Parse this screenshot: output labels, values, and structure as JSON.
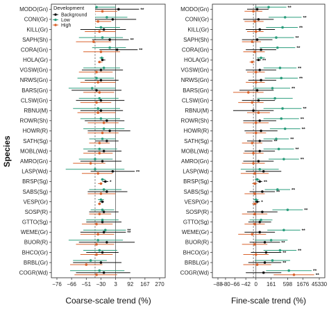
{
  "figure": {
    "ylabel": "Species",
    "legend": {
      "title": "Development",
      "placement": "top-left of left panel",
      "entries": [
        {
          "key": "Background",
          "label": "Background",
          "color": "#111111"
        },
        {
          "key": "Low",
          "label": "Low",
          "color": "#2a9d7c"
        },
        {
          "key": "High",
          "label": "High",
          "color": "#d9622b"
        }
      ]
    },
    "colors": {
      "Background": "#111111",
      "Low": "#2a9d7c",
      "High": "#d9622b"
    }
  },
  "chart_data": [
    {
      "type": "scatter",
      "xlabel": "Coarse-scale trend (%)",
      "x_ticks": [
        "−76",
        "−66",
        "−51",
        "−30",
        "3",
        "92",
        "167",
        "270"
      ],
      "reference_lines": {
        "zero_tick": "3",
        "dashed_tick_position": 2.6
      },
      "species": [
        "MODO(Gn)",
        "CONI(Gr)",
        "KILL(Gr)",
        "SAPH(Sh)",
        "CORA(Gn)",
        "HOLA(Gr)",
        "VGSW(Gn)",
        "NRWS(Gn)",
        "BARS(Gn)",
        "CLSW(Gn)",
        "RBNU(M)",
        "ROWR(Sh)",
        "HOWR(R)",
        "SATH(Sg)",
        "MOBL(Wd)",
        "AMRO(Gn)",
        "LASP(Wd)",
        "BRSP(Sg)",
        "SABS(Sg)",
        "VESP(Gr)",
        "SOSP(R)",
        "GTTO(Sg)",
        "WEME(Gr)",
        "BUOR(R)",
        "BHCO(Gr)",
        "BRBL(Gr)",
        "COGR(Wd)"
      ],
      "value_units": "position on the printed tick scale (0 = −76 … 7 = 270)",
      "estimates": [
        {
          "B": [
            4.2,
            2.6,
            5.6,
            "**"
          ],
          "L": [
            2.7,
            1.5,
            4.0,
            ""
          ],
          "H": [
            3.1,
            2.0,
            4.1,
            ""
          ]
        },
        {
          "B": [
            3.8,
            2.6,
            5.4,
            ""
          ],
          "L": [
            3.4,
            2.4,
            4.8,
            ""
          ],
          "H": [
            2.8,
            1.6,
            3.7,
            ""
          ]
        },
        {
          "B": [
            3.2,
            1.6,
            4.7,
            ""
          ],
          "L": [
            3.0,
            1.8,
            4.3,
            ""
          ],
          "H": [
            2.9,
            1.9,
            4.0,
            ""
          ]
        },
        {
          "B": [
            3.6,
            2.4,
            4.9,
            "**"
          ],
          "L": [
            3.1,
            1.5,
            4.5,
            ""
          ],
          "H": [
            2.5,
            1.3,
            3.7,
            ""
          ]
        },
        {
          "B": [
            4.1,
            2.9,
            5.5,
            "**"
          ],
          "L": [
            3.6,
            2.4,
            4.7,
            ""
          ],
          "H": [
            3.0,
            1.8,
            4.3,
            ""
          ]
        },
        {
          "B": [
            3.1,
            3.0,
            3.3,
            ""
          ],
          "L": [
            3.05,
            2.9,
            3.2,
            ""
          ],
          "H": [
            2.9,
            2.8,
            3.1,
            ""
          ]
        },
        {
          "B": [
            3.0,
            1.7,
            4.5,
            ""
          ],
          "L": [
            3.2,
            1.8,
            4.3,
            ""
          ],
          "H": [
            2.7,
            1.5,
            3.8,
            ""
          ]
        },
        {
          "B": [
            3.0,
            1.9,
            4.2,
            ""
          ],
          "L": [
            2.7,
            1.4,
            3.9,
            ""
          ],
          "H": [
            2.8,
            1.6,
            4.0,
            ""
          ]
        },
        {
          "B": [
            2.7,
            1.0,
            4.4,
            ""
          ],
          "L": [
            2.4,
            0.8,
            4.0,
            ""
          ],
          "H": [
            2.9,
            1.8,
            3.9,
            ""
          ]
        },
        {
          "B": [
            3.0,
            1.3,
            4.6,
            ""
          ],
          "L": [
            2.9,
            1.5,
            4.2,
            ""
          ],
          "H": [
            2.7,
            1.6,
            3.7,
            ""
          ]
        },
        {
          "B": [
            3.0,
            1.6,
            4.5,
            ""
          ],
          "L": [
            2.8,
            1.1,
            4.3,
            ""
          ],
          "H": [
            2.8,
            1.4,
            4.0,
            ""
          ]
        },
        {
          "B": [
            3.4,
            1.9,
            4.6,
            ""
          ],
          "L": [
            3.0,
            1.6,
            4.3,
            ""
          ],
          "H": [
            3.2,
            2.1,
            4.2,
            ""
          ]
        },
        {
          "B": [
            3.6,
            2.1,
            5.0,
            ""
          ],
          "L": [
            3.2,
            1.8,
            4.6,
            ""
          ],
          "H": [
            3.1,
            2.1,
            4.2,
            ""
          ]
        },
        {
          "B": [
            3.4,
            2.6,
            4.2,
            ""
          ],
          "L": [
            3.1,
            2.2,
            4.0,
            ""
          ],
          "H": [
            2.9,
            2.2,
            3.6,
            ""
          ]
        },
        {
          "B": [
            3.2,
            2.1,
            4.4,
            ""
          ],
          "L": [
            2.9,
            1.8,
            4.1,
            ""
          ],
          "H": [
            2.9,
            1.8,
            3.8,
            ""
          ]
        },
        {
          "B": [
            3.1,
            1.6,
            4.4,
            ""
          ],
          "L": [
            2.6,
            1.5,
            3.8,
            ""
          ],
          "H": [
            2.3,
            1.1,
            3.3,
            ""
          ]
        },
        {
          "B": [
            3.8,
            2.3,
            5.3,
            "**"
          ],
          "L": [
            2.6,
            0.6,
            4.6,
            ""
          ],
          "H": [
            2.8,
            1.7,
            3.8,
            ""
          ]
        },
        {
          "B": [
            3.3,
            3.1,
            3.5,
            "*"
          ],
          "L": [
            3.1,
            3.0,
            3.3,
            ""
          ],
          "H": [
            3.0,
            2.8,
            3.1,
            ""
          ]
        },
        {
          "B": [
            3.4,
            2.1,
            4.8,
            ""
          ],
          "L": [
            3.2,
            2.2,
            4.4,
            ""
          ],
          "H": [
            3.0,
            2.1,
            4.0,
            ""
          ]
        },
        {
          "B": [
            3.1,
            2.9,
            3.2,
            ""
          ],
          "L": [
            3.0,
            2.8,
            3.2,
            ""
          ],
          "H": [
            2.9,
            2.8,
            3.0,
            ""
          ]
        },
        {
          "B": [
            3.2,
            2.2,
            4.2,
            ""
          ],
          "L": [
            3.1,
            2.3,
            3.9,
            ""
          ],
          "H": [
            2.9,
            2.2,
            3.7,
            ""
          ]
        },
        {
          "B": [
            3.1,
            2.0,
            4.4,
            ""
          ],
          "L": [
            3.1,
            2.0,
            4.2,
            ""
          ],
          "H": [
            2.7,
            1.7,
            3.8,
            ""
          ]
        },
        {
          "B": [
            3.2,
            1.6,
            4.7,
            "**"
          ],
          "L": [
            3.3,
            1.8,
            4.7,
            "**"
          ],
          "H": [
            2.8,
            1.6,
            3.9,
            ""
          ]
        },
        {
          "B": [
            3.4,
            1.5,
            5.3,
            ""
          ],
          "L": [
            2.8,
            0.8,
            4.5,
            ""
          ],
          "H": [
            2.7,
            1.3,
            3.9,
            ""
          ]
        },
        {
          "B": [
            3.1,
            2.0,
            4.2,
            ""
          ],
          "L": [
            2.9,
            1.8,
            4.1,
            ""
          ],
          "H": [
            2.7,
            1.6,
            3.8,
            ""
          ]
        },
        {
          "B": [
            3.0,
            1.1,
            4.4,
            ""
          ],
          "L": [
            2.3,
            1.1,
            3.4,
            ""
          ],
          "H": [
            2.0,
            0.9,
            3.1,
            ""
          ]
        },
        {
          "B": [
            3.2,
            1.3,
            5.0,
            ""
          ],
          "L": [
            2.9,
            0.9,
            4.6,
            ""
          ],
          "H": [
            2.7,
            1.2,
            4.1,
            ""
          ]
        }
      ]
    },
    {
      "type": "scatter",
      "xlabel": "Fine-scale trend (%)",
      "x_ticks": [
        "−88",
        "−80",
        "−66",
        "−42",
        "0",
        "161",
        "598",
        "1676",
        "45330"
      ],
      "x_tick_positions": [
        0,
        0.6,
        1.35,
        2.2,
        3.0,
        4.2,
        5.5,
        6.7,
        8.0
      ],
      "reference_lines": {
        "zero_tick": "0",
        "dashed_tick_position": 2.8
      },
      "species": [
        "MODO(Gn)",
        "CONI(Gr)",
        "KILL(Gr)",
        "SAPH(Sh)",
        "CORA(Gn)",
        "HOLA(Gr)",
        "VGSW(Gn)",
        "NRWS(Gn)",
        "BARS(Gn)",
        "CLSW(Gn)",
        "RBNU(M)",
        "ROWR(Sh)",
        "HOWR(R)",
        "SATH(Sg)",
        "MOBL(Wd)",
        "AMRO(Gn)",
        "LASP(Wd)",
        "BRSP(Sg)",
        "SABS(Sg)",
        "VESP(Gr)",
        "SOSP(R)",
        "GTTO(Sg)",
        "WEME(Gr)",
        "BUOR(R)",
        "BHCO(Gr)",
        "BRBL(Gr)",
        "COGR(Wd)"
      ],
      "value_units": "position on the printed tick scale (0 = −88 … 8 = 45330)",
      "estimates": [
        {
          "B": [
            3.1,
            2.3,
            4.0,
            ""
          ],
          "L": [
            4.0,
            2.9,
            5.4,
            "**"
          ],
          "H": [
            2.8,
            2.1,
            3.5,
            ""
          ]
        },
        {
          "B": [
            3.2,
            2.0,
            4.4,
            ""
          ],
          "L": [
            5.3,
            4.0,
            6.6,
            "**"
          ],
          "H": [
            2.9,
            2.1,
            3.6,
            ""
          ]
        },
        {
          "B": [
            3.3,
            2.2,
            4.5,
            ""
          ],
          "L": [
            5.1,
            3.8,
            6.3,
            "**"
          ],
          "H": [
            3.0,
            2.3,
            3.6,
            ""
          ]
        },
        {
          "B": [
            3.1,
            1.9,
            4.3,
            ""
          ],
          "L": [
            4.6,
            3.2,
            6.0,
            "**"
          ],
          "H": [
            2.7,
            1.9,
            3.4,
            ""
          ]
        },
        {
          "B": [
            3.4,
            2.2,
            4.6,
            ""
          ],
          "L": [
            4.7,
            3.3,
            6.1,
            "**"
          ],
          "H": [
            2.9,
            2.0,
            3.7,
            ""
          ]
        },
        {
          "B": [
            3.2,
            3.0,
            3.4,
            "**"
          ],
          "L": [
            3.4,
            3.1,
            3.7,
            ""
          ],
          "H": [
            2.7,
            2.5,
            2.9,
            ""
          ]
        },
        {
          "B": [
            3.3,
            2.2,
            4.6,
            ""
          ],
          "L": [
            4.9,
            3.6,
            6.2,
            "**"
          ],
          "H": [
            3.0,
            2.3,
            3.7,
            ""
          ]
        },
        {
          "B": [
            3.4,
            2.4,
            4.6,
            ""
          ],
          "L": [
            5.0,
            3.7,
            6.3,
            "**"
          ],
          "H": [
            3.0,
            2.2,
            3.7,
            ""
          ]
        },
        {
          "B": [
            3.1,
            1.7,
            4.4,
            ""
          ],
          "L": [
            4.3,
            2.8,
            5.7,
            "**"
          ],
          "H": [
            2.4,
            1.2,
            3.6,
            ""
          ]
        },
        {
          "B": [
            3.2,
            1.9,
            4.5,
            ""
          ],
          "L": [
            4.5,
            3.1,
            5.9,
            ""
          ],
          "H": [
            2.7,
            1.6,
            3.6,
            ""
          ]
        },
        {
          "B": [
            2.8,
            1.2,
            4.4,
            ""
          ],
          "L": [
            5.1,
            3.6,
            6.6,
            "**"
          ],
          "H": [
            3.2,
            2.3,
            4.1,
            ""
          ]
        },
        {
          "B": [
            3.3,
            2.0,
            4.6,
            ""
          ],
          "L": [
            5.0,
            3.6,
            6.4,
            "**"
          ],
          "H": [
            3.0,
            2.0,
            4.0,
            ""
          ]
        },
        {
          "B": [
            3.4,
            2.1,
            4.7,
            ""
          ],
          "L": [
            5.3,
            4.1,
            6.5,
            "**"
          ],
          "H": [
            3.0,
            2.2,
            3.8,
            ""
          ]
        },
        {
          "B": [
            3.3,
            2.3,
            4.3,
            "**"
          ],
          "L": [
            4.6,
            3.6,
            5.6,
            "**"
          ],
          "H": [
            2.7,
            1.9,
            3.5,
            ""
          ]
        },
        {
          "B": [
            3.3,
            2.1,
            4.5,
            ""
          ],
          "L": [
            4.8,
            3.6,
            6.0,
            "**"
          ],
          "H": [
            2.8,
            2.0,
            3.6,
            ""
          ]
        },
        {
          "B": [
            3.2,
            2.0,
            4.4,
            ""
          ],
          "L": [
            5.2,
            4.0,
            6.4,
            "**"
          ],
          "H": [
            2.8,
            1.9,
            3.7,
            ""
          ]
        },
        {
          "B": [
            3.6,
            2.2,
            5.0,
            ""
          ],
          "L": [
            3.3,
            1.8,
            4.8,
            ""
          ],
          "H": [
            2.9,
            1.8,
            4.0,
            ""
          ]
        },
        {
          "B": [
            3.3,
            3.1,
            3.5,
            "**"
          ],
          "L": [
            3.1,
            2.9,
            3.3,
            ""
          ],
          "H": [
            2.9,
            2.7,
            3.1,
            ""
          ]
        },
        {
          "B": [
            3.5,
            2.5,
            4.5,
            "**"
          ],
          "L": [
            4.7,
            3.7,
            5.7,
            "**"
          ],
          "H": [
            2.9,
            2.1,
            3.7,
            ""
          ]
        },
        {
          "B": [
            3.1,
            2.9,
            3.3,
            "*"
          ],
          "L": [
            3.0,
            2.8,
            3.2,
            ""
          ],
          "H": [
            2.9,
            2.7,
            3.1,
            ""
          ]
        },
        {
          "B": [
            3.5,
            2.3,
            4.7,
            ""
          ],
          "L": [
            5.5,
            4.3,
            6.7,
            "**"
          ],
          "H": [
            2.9,
            1.9,
            3.9,
            ""
          ]
        },
        {
          "B": [
            3.3,
            2.4,
            4.2,
            ""
          ],
          "L": [
            3.4,
            2.5,
            4.3,
            ""
          ],
          "H": [
            2.9,
            2.1,
            3.7,
            ""
          ]
        },
        {
          "B": [
            3.3,
            2.1,
            4.5,
            ""
          ],
          "L": [
            5.2,
            3.9,
            6.5,
            "**"
          ],
          "H": [
            2.7,
            1.6,
            3.8,
            ""
          ]
        },
        {
          "B": [
            3.7,
            2.5,
            4.9,
            "**"
          ],
          "L": [
            4.2,
            2.9,
            5.5,
            ""
          ],
          "H": [
            2.9,
            1.9,
            3.9,
            ""
          ]
        },
        {
          "B": [
            3.8,
            2.6,
            5.0,
            "**"
          ],
          "L": [
            4.9,
            3.6,
            6.2,
            "**"
          ],
          "H": [
            3.0,
            2.0,
            4.0,
            ""
          ]
        },
        {
          "B": [
            3.7,
            2.4,
            5.0,
            "**"
          ],
          "L": [
            4.3,
            2.9,
            5.7,
            ""
          ],
          "H": [
            3.1,
            2.0,
            4.2,
            ""
          ]
        },
        {
          "B": [
            3.6,
            2.2,
            5.0,
            ""
          ],
          "L": [
            5.6,
            3.8,
            7.4,
            "**"
          ],
          "H": [
            6.0,
            4.4,
            7.6,
            "**"
          ]
        }
      ]
    }
  ]
}
